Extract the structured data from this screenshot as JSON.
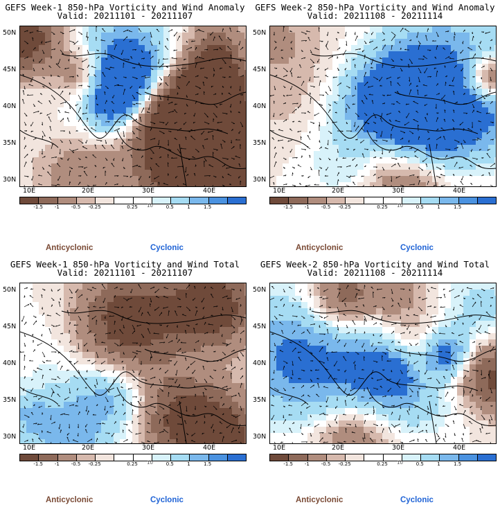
{
  "panels": [
    {
      "title1": "GEFS Week-1 850-hPa Vorticity and Wind Anomaly",
      "title2": "Valid: 20211101 - 20211107",
      "seed": 11
    },
    {
      "title1": "GEFS Week-2 850-hPa Vorticity and Wind Anomaly",
      "title2": "Valid: 20211108 - 20211114",
      "seed": 23
    },
    {
      "title1": "GEFS Week-1 850-hPa Vorticity and Wind Total",
      "title2": "Valid: 20211101 - 20211107",
      "seed": 37
    },
    {
      "title1": "GEFS Week-2 850-hPa Vorticity and Wind Total",
      "title2": "Valid: 20211108 - 20211114",
      "seed": 51
    }
  ],
  "map": {
    "lat_labels": [
      "50N",
      "45N",
      "40N",
      "35N",
      "30N"
    ],
    "lon_labels": [
      "10E",
      "20E",
      "30E",
      "40E"
    ]
  },
  "colorbar": {
    "ticks": [
      "-1.5",
      "-1",
      "-0.5",
      "-0.25",
      "0.25",
      "0.5",
      "1",
      "1.5"
    ],
    "unit_label": "10",
    "colors": [
      "#6f4a3a",
      "#8e6a5a",
      "#b08d7e",
      "#d6b9ad",
      "#f2e5de",
      "#ffffff",
      "#ffffff",
      "#d8f2fa",
      "#a6dcf3",
      "#7ab8ec",
      "#4a92e0",
      "#2a6fd2"
    ]
  },
  "legend": {
    "anticyclonic": "Anticyclonic",
    "cyclonic": "Cyclonic"
  }
}
